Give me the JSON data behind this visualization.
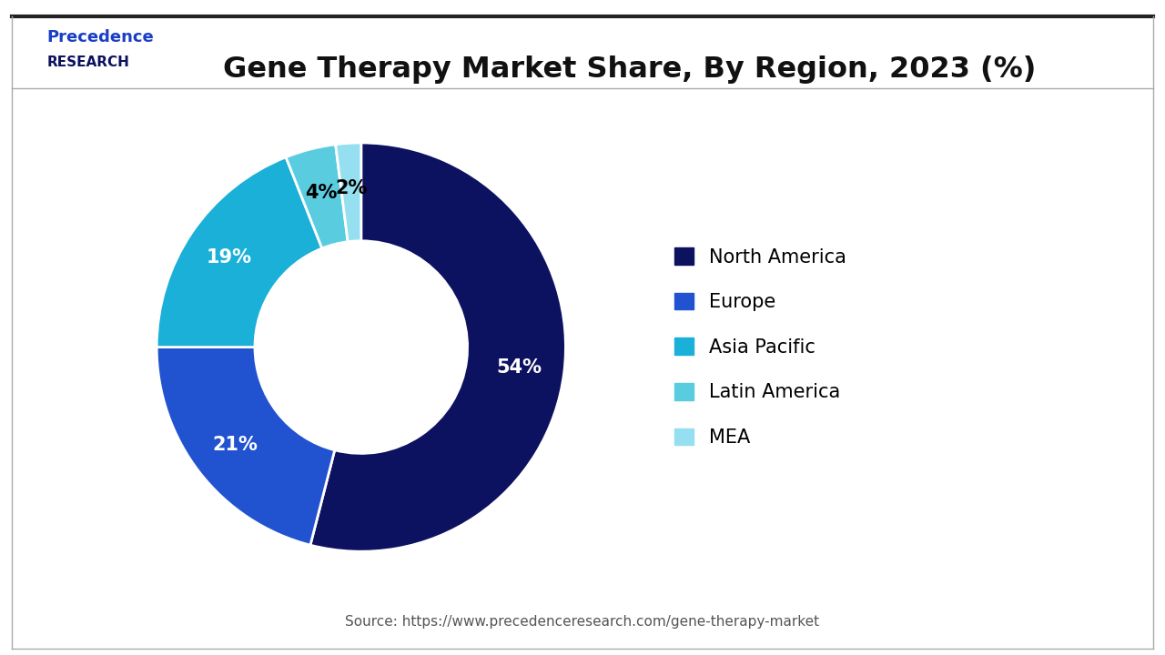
{
  "title": "Gene Therapy Market Share, By Region, 2023 (%)",
  "values": [
    54,
    21,
    19,
    4,
    2
  ],
  "labels": [
    "North America",
    "Europe",
    "Asia Pacific",
    "Latin America",
    "MEA"
  ],
  "colors": [
    "#0d1260",
    "#2152d0",
    "#1ab0d8",
    "#5acce0",
    "#96dff0"
  ],
  "pct_labels": [
    "54%",
    "21%",
    "19%",
    "4%",
    "2%"
  ],
  "pct_colors": [
    "white",
    "white",
    "white",
    "black",
    "black"
  ],
  "source_text": "Source: https://www.precedenceresearch.com/gene-therapy-market",
  "background_color": "#ffffff",
  "wedge_edge_color": "#ffffff",
  "donut_hole": 0.52,
  "start_angle": 90,
  "title_fontsize": 23,
  "legend_fontsize": 15,
  "pct_fontsize": 15
}
